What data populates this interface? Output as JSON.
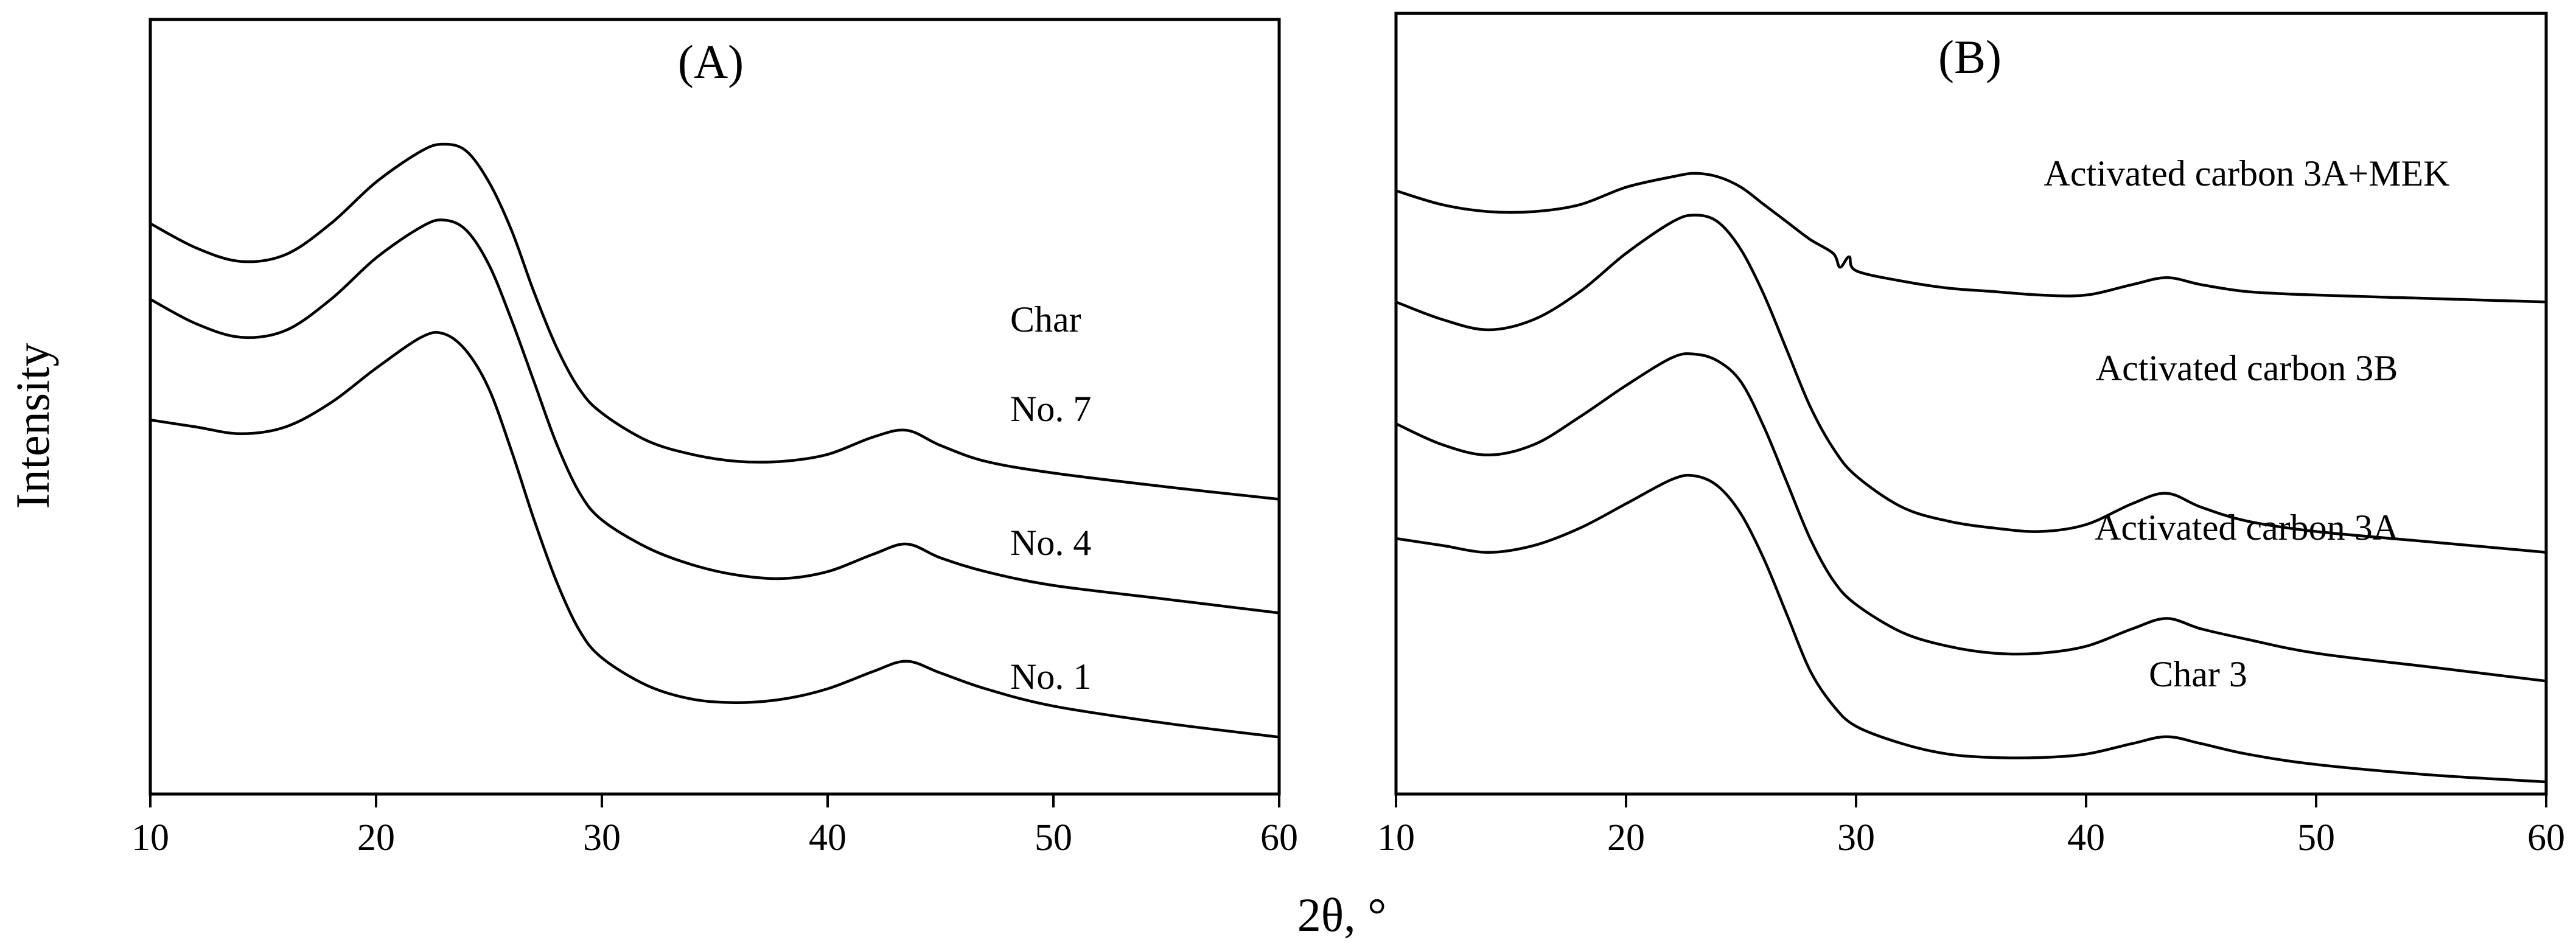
{
  "figure": {
    "ylabel": "Intensity",
    "xlabel": "2θ, °"
  },
  "chart_data": [
    {
      "type": "line",
      "title": "(A)",
      "xlabel": "2θ, °",
      "ylabel": "Intensity",
      "xlim": [
        10,
        60
      ],
      "xticks": [
        10,
        20,
        30,
        40,
        50,
        60
      ],
      "ylim": [
        0,
        100
      ],
      "y_ticks_shown": false,
      "grid": false,
      "legend": "none",
      "group_label": "Char",
      "line_color": "#000000",
      "series": [
        {
          "name": "No. 7",
          "x": [
            10,
            12,
            14,
            16,
            18,
            20,
            22,
            23,
            24,
            25,
            26,
            27,
            28,
            29,
            30,
            32,
            34,
            36,
            38,
            40,
            42,
            43.5,
            45,
            47,
            50,
            55,
            60
          ],
          "values": [
            81,
            77.5,
            75.5,
            76.5,
            81,
            87,
            91.5,
            92.5,
            91.5,
            87,
            80,
            71,
            63,
            57,
            53.5,
            49.5,
            47.5,
            46.5,
            46.5,
            47.5,
            50,
            51,
            48.8,
            46.5,
            44.8,
            42.8,
            41
          ]
        },
        {
          "name": "No. 4",
          "x": [
            10,
            12,
            14,
            16,
            18,
            20,
            22,
            23,
            24,
            25,
            26,
            27,
            28,
            29,
            30,
            32,
            34,
            36,
            38,
            40,
            42,
            43.5,
            45,
            47,
            50,
            55,
            60
          ],
          "values": [
            70,
            66.5,
            64.5,
            65.5,
            70,
            76,
            80.5,
            81.5,
            80,
            75,
            67,
            58,
            49,
            42,
            38,
            34,
            31.5,
            30,
            29.5,
            30.5,
            33,
            34.5,
            32.5,
            30.5,
            28.5,
            26.5,
            24.5
          ]
        },
        {
          "name": "No. 1",
          "x": [
            10,
            12,
            14,
            16,
            18,
            20,
            22,
            23,
            24,
            25,
            26,
            27,
            28,
            29,
            30,
            32,
            34,
            36,
            38,
            40,
            42,
            43.5,
            45,
            47,
            50,
            55,
            60
          ],
          "values": [
            52.5,
            51.5,
            50.5,
            51.5,
            55,
            60,
            64.5,
            65,
            62.5,
            57,
            48,
            38,
            29,
            22,
            18,
            14,
            12,
            11.5,
            12,
            13.5,
            16,
            17.5,
            15.8,
            13.5,
            11,
            8.5,
            6.5
          ]
        }
      ]
    },
    {
      "type": "line",
      "title": "(B)",
      "xlabel": "2θ, °",
      "ylabel": "Intensity",
      "xlim": [
        10,
        60
      ],
      "xticks": [
        10,
        20,
        30,
        40,
        50,
        60
      ],
      "ylim": [
        0,
        100
      ],
      "y_ticks_shown": false,
      "grid": false,
      "legend": "none",
      "line_color": "#000000",
      "series": [
        {
          "name": "Activated carbon 3A+MEK",
          "x": [
            10,
            12,
            14,
            16,
            18,
            20,
            22,
            23,
            24,
            25,
            26,
            27,
            28,
            29,
            29.3,
            29.7,
            30,
            32,
            34,
            36,
            38,
            40,
            42,
            43.5,
            45,
            47,
            50,
            55,
            60
          ],
          "values": [
            85,
            83,
            82,
            82,
            83,
            85.5,
            87,
            87.5,
            87,
            85.5,
            83,
            80.5,
            78,
            76,
            74,
            75.5,
            73.5,
            72,
            71,
            70.5,
            70,
            70,
            71.5,
            72.5,
            71.5,
            70.5,
            70,
            69.5,
            69
          ]
        },
        {
          "name": "Activated carbon 3B",
          "x": [
            10,
            12,
            14,
            16,
            18,
            20,
            22,
            23,
            24,
            25,
            26,
            27,
            28,
            29,
            30,
            32,
            34,
            36,
            38,
            40,
            42,
            43.5,
            45,
            47,
            50,
            55,
            60
          ],
          "values": [
            69,
            66.5,
            65,
            66.5,
            70.5,
            76,
            80.5,
            81.5,
            80.5,
            76.5,
            70,
            62,
            54,
            48,
            44,
            39.5,
            37.5,
            36.5,
            36,
            37,
            40,
            41.5,
            39.5,
            37.5,
            36,
            34.5,
            33
          ]
        },
        {
          "name": "Activated carbon 3A",
          "x": [
            10,
            12,
            14,
            16,
            18,
            20,
            22,
            23,
            24,
            25,
            26,
            27,
            28,
            29,
            30,
            32,
            34,
            36,
            38,
            40,
            42,
            43.5,
            45,
            47,
            50,
            55,
            60
          ],
          "values": [
            51.5,
            48.5,
            47,
            48.5,
            52.5,
            57,
            61,
            61.5,
            60.5,
            57.5,
            51,
            43,
            35,
            29,
            25.5,
            21.5,
            19.5,
            18.5,
            18.5,
            19.5,
            22,
            23.5,
            22,
            20.5,
            18.5,
            16.5,
            14.5
          ]
        },
        {
          "name": "Char 3",
          "x": [
            10,
            12,
            14,
            16,
            18,
            20,
            22,
            23,
            24,
            25,
            26,
            27,
            28,
            29,
            30,
            32,
            34,
            36,
            38,
            40,
            42,
            43.5,
            45,
            47,
            50,
            55,
            60
          ],
          "values": [
            35,
            34,
            33,
            34,
            36.5,
            40,
            43.5,
            44,
            42.5,
            38.5,
            32,
            24,
            16,
            11,
            8,
            5.5,
            4,
            3.5,
            3.5,
            4,
            5.5,
            6.5,
            5.5,
            4,
            2.5,
            1,
            0
          ]
        }
      ]
    }
  ]
}
